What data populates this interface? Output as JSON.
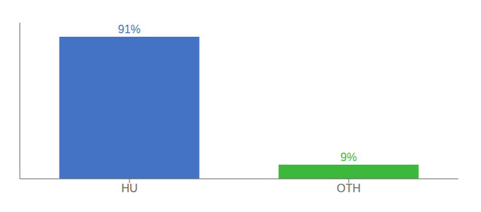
{
  "chart_data": {
    "type": "bar",
    "categories": [
      "HU",
      "OTH"
    ],
    "values": [
      91,
      9
    ],
    "value_labels": [
      "91%",
      "9%"
    ],
    "colors": [
      "#4472c4",
      "#3cb83c"
    ],
    "ylim": [
      0,
      100
    ],
    "data_labels": true,
    "tick_labels": "x",
    "grid": false
  }
}
